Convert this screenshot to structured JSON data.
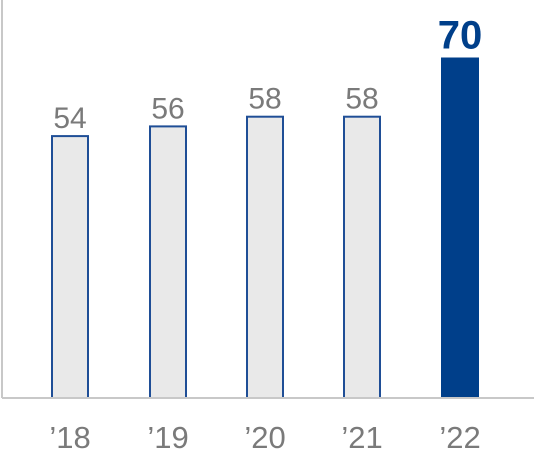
{
  "chart_data": {
    "type": "bar",
    "title": "",
    "xlabel": "",
    "ylabel": "",
    "categories": [
      "’18",
      "’19",
      "’20",
      "’21",
      "’22"
    ],
    "values": [
      54,
      56,
      58,
      58,
      70
    ],
    "data_labels": [
      "54",
      "56",
      "58",
      "58",
      "70"
    ],
    "ylim": [
      0,
      80
    ],
    "highlight_index": 4,
    "grid": false,
    "legend": "none",
    "colors": {
      "bar_fill": "#e9e9e9",
      "bar_stroke": "#1f4e96",
      "highlight_fill": "#003f8a",
      "label_text": "#7a7a7a",
      "highlight_text": "#003f8a",
      "axis": "#c8c8c8"
    }
  }
}
